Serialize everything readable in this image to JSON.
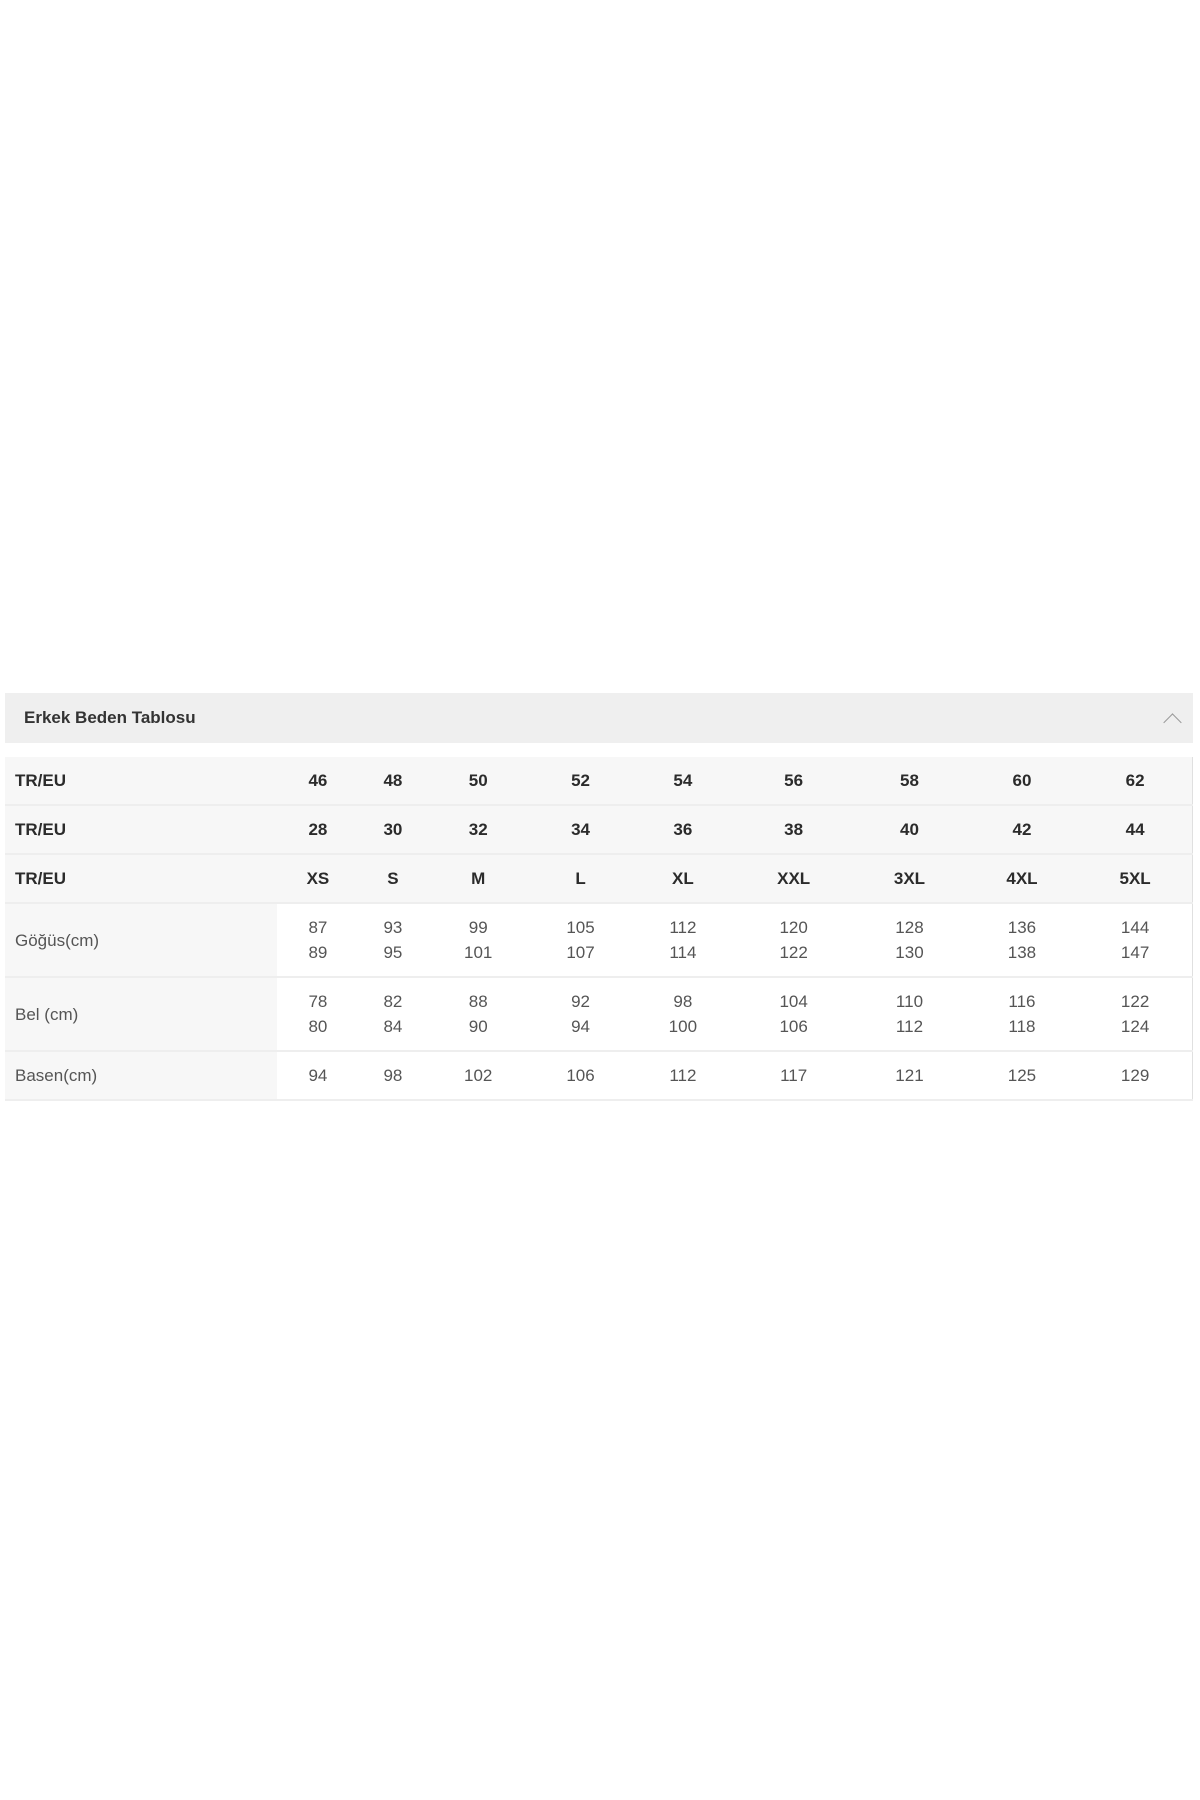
{
  "panel": {
    "title": "Erkek Beden Tablosu",
    "icon": "chevron-up-icon"
  },
  "rows": [
    {
      "label": "TR/EU",
      "values": [
        "46",
        "48",
        "50",
        "52",
        "54",
        "56",
        "58",
        "60",
        "62"
      ]
    },
    {
      "label": "TR/EU",
      "values": [
        "28",
        "30",
        "32",
        "34",
        "36",
        "38",
        "40",
        "42",
        "44"
      ]
    },
    {
      "label": "TR/EU",
      "values": [
        "XS",
        "S",
        "M",
        "L",
        "XL",
        "XXL",
        "3XL",
        "4XL",
        "5XL"
      ]
    },
    {
      "label": "Göğüs(cm)",
      "values": [
        [
          "87",
          "89"
        ],
        [
          "93",
          "95"
        ],
        [
          "99",
          "101"
        ],
        [
          "105",
          "107"
        ],
        [
          "112",
          "114"
        ],
        [
          "120",
          "122"
        ],
        [
          "128",
          "130"
        ],
        [
          "136",
          "138"
        ],
        [
          "144",
          "147"
        ]
      ]
    },
    {
      "label": "Bel (cm)",
      "values": [
        [
          "78",
          "80"
        ],
        [
          "82",
          "84"
        ],
        [
          "88",
          "90"
        ],
        [
          "92",
          "94"
        ],
        [
          "98",
          "100"
        ],
        [
          "104",
          "106"
        ],
        [
          "110",
          "112"
        ],
        [
          "116",
          "118"
        ],
        [
          "122",
          "124"
        ]
      ]
    },
    {
      "label": "Basen(cm)",
      "values": [
        "94",
        "98",
        "102",
        "106",
        "112",
        "117",
        "121",
        "125",
        "129"
      ]
    }
  ]
}
